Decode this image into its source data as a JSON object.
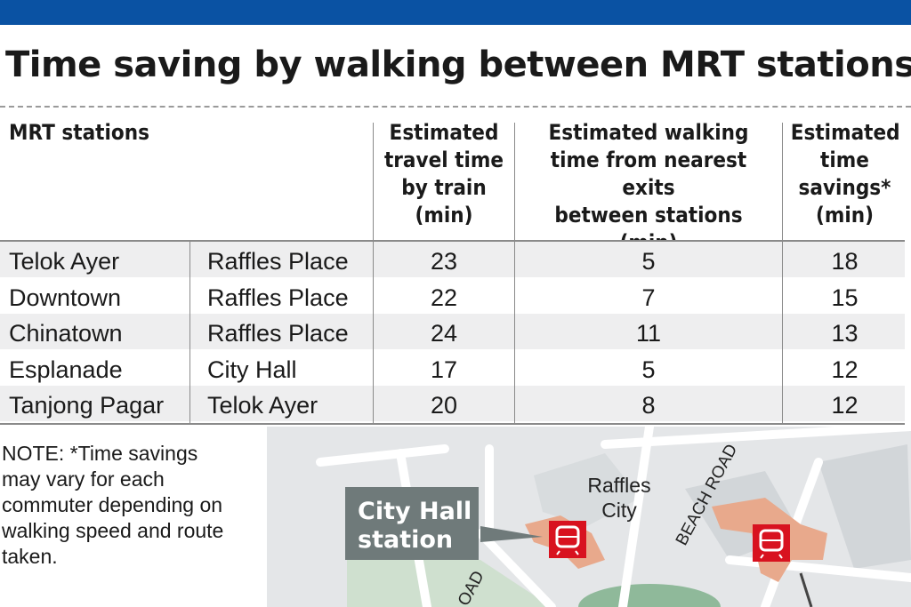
{
  "title": "Time saving by walking between MRT stations",
  "table": {
    "headers": {
      "stations": "MRT stations",
      "train": [
        "Estimated",
        "travel time",
        "by train",
        "(min)"
      ],
      "walk": [
        "Estimated walking",
        "time from nearest exits",
        "between stations",
        "(min)"
      ],
      "savings": [
        "Estimated",
        "time",
        "savings*",
        "(min)"
      ]
    },
    "rows": [
      {
        "from": "Telok Ayer",
        "to": "Raffles Place",
        "train": "23",
        "walk": "5",
        "savings": "18"
      },
      {
        "from": "Downtown",
        "to": "Raffles Place",
        "train": "22",
        "walk": "7",
        "savings": "15"
      },
      {
        "from": "Chinatown",
        "to": "Raffles Place",
        "train": "24",
        "walk": "11",
        "savings": "13"
      },
      {
        "from": "Esplanade",
        "to": "City Hall",
        "train": "17",
        "walk": "5",
        "savings": "12"
      },
      {
        "from": "Tanjong Pagar",
        "to": "Telok Ayer",
        "train": "20",
        "walk": "8",
        "savings": "12"
      }
    ]
  },
  "note": "NOTE: *Time savings may vary for each commuter depending on walking speed and route taken.",
  "map": {
    "callout": [
      "City Hall",
      "station"
    ],
    "building": [
      "Raffles",
      "City"
    ],
    "road": "BEACH ROAD",
    "road_partial": "OAD",
    "icons": [
      "mrt-train-icon",
      "mrt-train-icon"
    ]
  },
  "colors": {
    "brand_bar": "#0a52a3",
    "station_fill": "#e8a98c",
    "mrt_icon": "#d8121f",
    "callout": "#6f7a7a"
  },
  "chart_data": {
    "type": "table",
    "title": "Time saving by walking between MRT stations",
    "columns": [
      "MRT stations",
      "MRT stations",
      "Estimated travel time by train (min)",
      "Estimated walking time from nearest exits between stations (min)",
      "Estimated time savings* (min)"
    ],
    "rows": [
      [
        "Telok Ayer",
        "Raffles Place",
        23,
        5,
        18
      ],
      [
        "Downtown",
        "Raffles Place",
        22,
        7,
        15
      ],
      [
        "Chinatown",
        "Raffles Place",
        24,
        11,
        13
      ],
      [
        "Esplanade",
        "City Hall",
        17,
        5,
        12
      ],
      [
        "Tanjong Pagar",
        "Telok Ayer",
        20,
        8,
        12
      ]
    ]
  }
}
